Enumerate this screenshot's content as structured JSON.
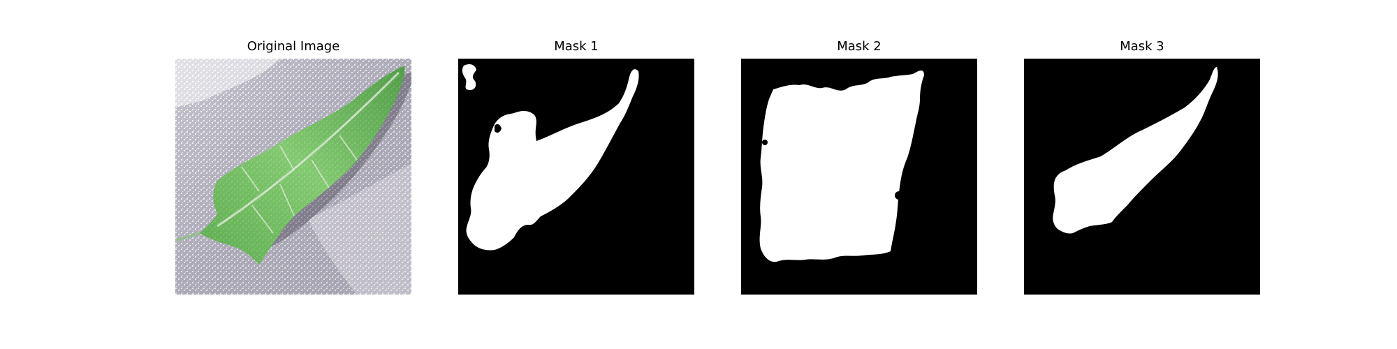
{
  "panels": [
    {
      "title": "Original Image",
      "kind": "photo"
    },
    {
      "title": "Mask 1",
      "kind": "mask"
    },
    {
      "title": "Mask 2",
      "kind": "mask"
    },
    {
      "title": "Mask 3",
      "kind": "mask"
    }
  ],
  "colors": {
    "mask_background": "#000000",
    "mask_foreground": "#ffffff",
    "leaf_green": "#5fbf4a",
    "photo_background": "#a9a6b3"
  },
  "icons": [
    "leaf-photo",
    "segmentation-mask"
  ]
}
